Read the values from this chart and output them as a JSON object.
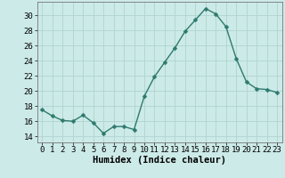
{
  "x": [
    0,
    1,
    2,
    3,
    4,
    5,
    6,
    7,
    8,
    9,
    10,
    11,
    12,
    13,
    14,
    15,
    16,
    17,
    18,
    19,
    20,
    21,
    22,
    23
  ],
  "y": [
    17.5,
    16.7,
    16.1,
    16.0,
    16.8,
    15.8,
    14.4,
    15.3,
    15.3,
    14.9,
    19.3,
    21.9,
    23.8,
    25.7,
    27.9,
    29.4,
    30.9,
    30.2,
    28.5,
    24.3,
    21.2,
    20.3,
    20.2,
    19.8
  ],
  "line_color": "#2d7a6e",
  "marker": "D",
  "markersize": 2.5,
  "linewidth": 1.0,
  "bg_color": "#cceae8",
  "grid_color": "#b0d4d0",
  "xlabel": "Humidex (Indice chaleur)",
  "xlabel_fontsize": 7.5,
  "tick_fontsize": 6.5,
  "yticks": [
    14,
    16,
    18,
    20,
    22,
    24,
    26,
    28,
    30
  ],
  "ylim": [
    13.2,
    31.8
  ],
  "xlim": [
    -0.5,
    23.5
  ]
}
